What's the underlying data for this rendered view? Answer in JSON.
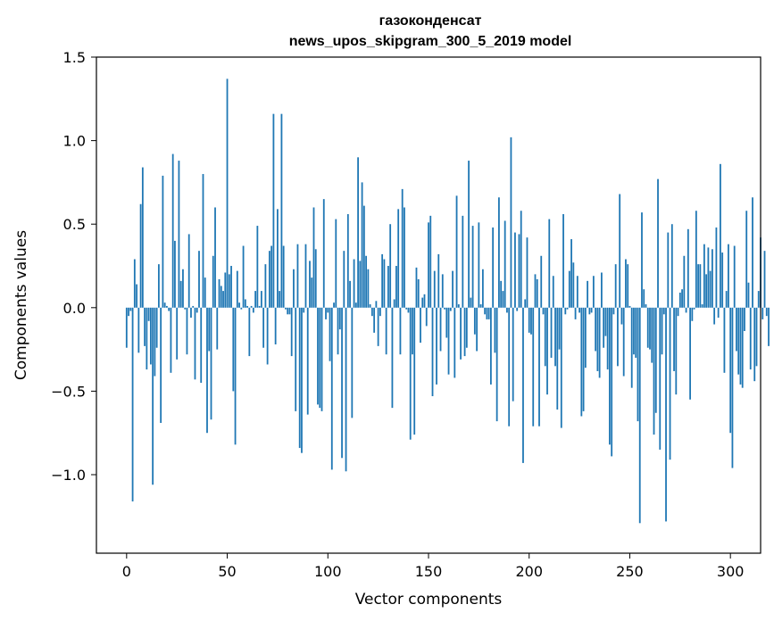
{
  "chart_data": {
    "type": "bar",
    "title": "газоконденсат",
    "subtitle": "news_upos_skipgram_300_5_2019 model",
    "xlabel": "Vector components",
    "ylabel": "Components values",
    "xlim": [
      -15,
      315
    ],
    "ylim": [
      -1.47,
      1.5
    ],
    "x_ticks": [
      0,
      50,
      100,
      150,
      200,
      250,
      300
    ],
    "x_tick_labels": [
      "0",
      "50",
      "100",
      "150",
      "200",
      "250",
      "300"
    ],
    "y_ticks": [
      -1.0,
      -0.5,
      0.0,
      0.5,
      1.0,
      1.5
    ],
    "y_tick_labels": [
      "−1.0",
      "−0.5",
      "0.0",
      "0.5",
      "1.0",
      "1.5"
    ],
    "bar_color": "#1f77b4",
    "grid": false,
    "legend": "none",
    "values": [
      -0.24,
      -0.05,
      -0.02,
      -1.16,
      0.29,
      0.14,
      -0.27,
      0.62,
      0.84,
      -0.23,
      -0.37,
      -0.08,
      -0.34,
      -1.06,
      -0.41,
      -0.24,
      0.26,
      -0.69,
      0.79,
      0.03,
      0.01,
      -0.02,
      -0.39,
      0.92,
      0.4,
      -0.31,
      0.88,
      0.16,
      0.23,
      -0.01,
      -0.28,
      0.44,
      -0.06,
      0.01,
      -0.43,
      -0.03,
      0.34,
      -0.45,
      0.8,
      0.18,
      -0.75,
      -0.26,
      -0.67,
      0.31,
      0.6,
      -0.25,
      0.17,
      0.13,
      0.1,
      0.21,
      1.37,
      0.2,
      0.25,
      -0.5,
      -0.82,
      0.22,
      0.03,
      -0.01,
      0.37,
      0.05,
      0.01,
      -0.29,
      0.01,
      -0.03,
      0.1,
      0.49,
      0.01,
      0.1,
      -0.24,
      0.26,
      -0.34,
      0.34,
      0.37,
      1.16,
      -0.22,
      0.59,
      0.1,
      1.16,
      0.37,
      -0.01,
      -0.04,
      -0.04,
      -0.29,
      0.23,
      -0.62,
      0.38,
      -0.84,
      -0.87,
      -0.03,
      0.38,
      -0.64,
      0.28,
      0.18,
      0.6,
      0.35,
      -0.58,
      -0.6,
      -0.62,
      0.65,
      -0.07,
      -0.03,
      -0.32,
      -0.97,
      0.03,
      0.53,
      -0.28,
      -0.13,
      -0.9,
      0.34,
      -0.98,
      0.56,
      0.16,
      -0.66,
      0.29,
      0.03,
      0.9,
      0.28,
      0.75,
      0.61,
      0.31,
      0.23,
      0.02,
      -0.05,
      -0.15,
      0.04,
      -0.23,
      -0.05,
      0.32,
      0.29,
      -0.28,
      0.25,
      0.5,
      -0.6,
      0.05,
      0.25,
      0.59,
      -0.28,
      0.71,
      0.6,
      -0.01,
      -0.03,
      -0.79,
      -0.28,
      -0.76,
      0.24,
      0.17,
      -0.21,
      0.06,
      0.08,
      -0.11,
      0.51,
      0.55,
      -0.53,
      0.22,
      -0.46,
      0.32,
      -0.26,
      0.2,
      -0.01,
      -0.18,
      -0.4,
      -0.02,
      0.22,
      -0.42,
      0.67,
      0.02,
      -0.31,
      0.55,
      -0.29,
      -0.24,
      0.88,
      0.06,
      0.49,
      -0.16,
      -0.26,
      0.51,
      0.02,
      0.23,
      -0.04,
      -0.07,
      -0.07,
      -0.46,
      0.48,
      -0.27,
      -0.68,
      0.66,
      0.16,
      0.1,
      0.52,
      -0.03,
      -0.71,
      1.02,
      -0.56,
      0.45,
      -0.02,
      0.44,
      0.58,
      -0.93,
      0.05,
      0.42,
      -0.15,
      -0.16,
      -0.71,
      0.2,
      0.17,
      -0.71,
      0.31,
      -0.04,
      -0.35,
      -0.52,
      0.53,
      -0.3,
      0.19,
      -0.35,
      -0.61,
      -0.25,
      -0.72,
      0.56,
      -0.04,
      -0.01,
      0.22,
      0.41,
      0.27,
      -0.07,
      0.19,
      -0.03,
      -0.65,
      -0.62,
      -0.36,
      0.16,
      -0.04,
      -0.03,
      0.19,
      -0.26,
      -0.38,
      -0.42,
      0.21,
      -0.24,
      -0.17,
      -0.37,
      -0.82,
      -0.89,
      -0.04,
      0.26,
      -0.35,
      0.68,
      -0.1,
      -0.41,
      0.29,
      0.26,
      0.01,
      -0.48,
      -0.28,
      -0.3,
      -0.68,
      -1.29,
      0.57,
      0.11,
      0.02,
      -0.24,
      -0.25,
      -0.33,
      -0.76,
      -0.63,
      0.77,
      -0.85,
      -0.28,
      -0.04,
      -1.28,
      0.45,
      -0.91,
      0.5,
      -0.38,
      -0.52,
      -0.05,
      0.09,
      0.11,
      0.31,
      -0.03,
      0.47,
      -0.55,
      -0.08,
      -0.01,
      0.58,
      0.26,
      0.26,
      0.02,
      0.38,
      0.2,
      0.36,
      0.22,
      0.35,
      -0.1,
      0.48,
      -0.06,
      0.86,
      0.33,
      -0.39,
      0.1,
      0.38,
      -0.75,
      -0.96,
      0.37,
      -0.26,
      -0.4,
      -0.46,
      -0.48,
      -0.14,
      0.58,
      0.15,
      -0.37,
      0.66,
      -0.44,
      -0.35,
      0.1,
      0.42,
      -0.07,
      0.34,
      -0.05,
      -0.23
    ]
  }
}
